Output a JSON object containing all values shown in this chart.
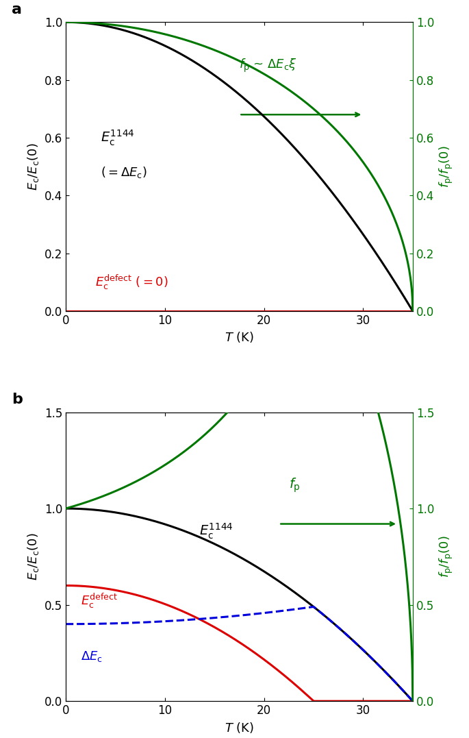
{
  "Tc": 35.0,
  "panel_a": {
    "label": "a",
    "Ec1144_color": "#000000",
    "Ec_defect_color": "#dd0000",
    "fp_color": "#007700",
    "ylim": [
      0,
      1.0
    ],
    "yticks": [
      0,
      0.2,
      0.4,
      0.6,
      0.8,
      1.0
    ],
    "ylabel_left": "$E_{\\mathrm{c}}/E_{\\mathrm{c}}(0)$",
    "ylabel_right": "$f_{\\mathrm{p}}/f_{\\mathrm{p}}(0)$"
  },
  "panel_b": {
    "label": "b",
    "Ec1144_color": "#000000",
    "Ec_defect_color": "#dd0000",
    "dEc_color": "#0000dd",
    "fp_color": "#007700",
    "ylim": [
      0,
      1.5
    ],
    "yticks": [
      0,
      0.5,
      1.0,
      1.5
    ],
    "ylabel_left": "$E_{\\mathrm{c}}/E_{\\mathrm{c}}(0)$",
    "ylabel_right": "$f_{\\mathrm{p}}/f_{\\mathrm{p}}(0)$",
    "Ec_defect_0": 0.6,
    "Tc_defect": 25.0
  },
  "xlabel": "$T$ (K)",
  "xlim": [
    0,
    35
  ],
  "xticks": [
    0,
    10,
    20,
    30
  ],
  "background_color": "#ffffff",
  "linewidth": 2.2
}
